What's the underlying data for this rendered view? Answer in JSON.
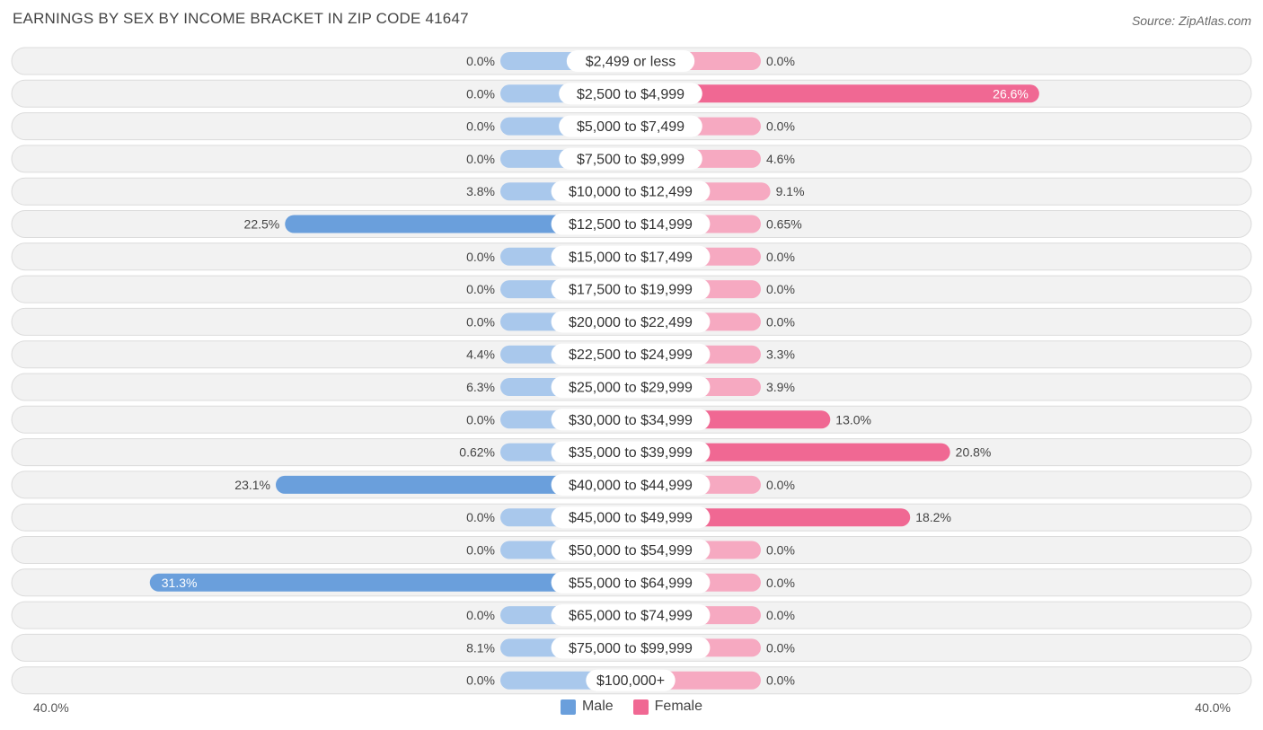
{
  "header": {
    "title": "EARNINGS BY SEX BY INCOME BRACKET IN ZIP CODE 41647",
    "source": "Source: ZipAtlas.com"
  },
  "colors": {
    "male_strong": "#6a9fdc",
    "male_light": "#a9c8ec",
    "female_strong": "#f06893",
    "female_light": "#f6a9c1",
    "row_bg": "#f2f2f2",
    "row_border": "#dcdcdc"
  },
  "chart_data": {
    "type": "bar",
    "orientation": "horizontal-diverging",
    "title": "EARNINGS BY SEX BY INCOME BRACKET IN ZIP CODE 41647",
    "xlim": [
      -40,
      40
    ],
    "axis_labels": {
      "left": "40.0%",
      "right": "40.0%"
    },
    "legend": [
      {
        "name": "Male",
        "color": "#6a9fdc"
      },
      {
        "name": "Female",
        "color": "#f06893"
      }
    ],
    "categories": [
      "$2,499 or less",
      "$2,500 to $4,999",
      "$5,000 to $7,499",
      "$7,500 to $9,999",
      "$10,000 to $12,499",
      "$12,500 to $14,999",
      "$15,000 to $17,499",
      "$17,500 to $19,999",
      "$20,000 to $22,499",
      "$22,500 to $24,999",
      "$25,000 to $29,999",
      "$30,000 to $34,999",
      "$35,000 to $39,999",
      "$40,000 to $44,999",
      "$45,000 to $49,999",
      "$50,000 to $54,999",
      "$55,000 to $64,999",
      "$65,000 to $74,999",
      "$75,000 to $99,999",
      "$100,000+"
    ],
    "series": [
      {
        "name": "Male",
        "values": [
          0.0,
          0.0,
          0.0,
          0.0,
          3.8,
          22.5,
          0.0,
          0.0,
          0.0,
          4.4,
          6.3,
          0.0,
          0.62,
          23.1,
          0.0,
          0.0,
          31.3,
          0.0,
          8.1,
          0.0
        ],
        "labels": [
          "0.0%",
          "0.0%",
          "0.0%",
          "0.0%",
          "3.8%",
          "22.5%",
          "0.0%",
          "0.0%",
          "0.0%",
          "4.4%",
          "6.3%",
          "0.0%",
          "0.62%",
          "23.1%",
          "0.0%",
          "0.0%",
          "31.3%",
          "0.0%",
          "8.1%",
          "0.0%"
        ]
      },
      {
        "name": "Female",
        "values": [
          0.0,
          26.6,
          0.0,
          4.6,
          9.1,
          0.65,
          0.0,
          0.0,
          0.0,
          3.3,
          3.9,
          13.0,
          20.8,
          0.0,
          18.2,
          0.0,
          0.0,
          0.0,
          0.0,
          0.0
        ],
        "labels": [
          "0.0%",
          "26.6%",
          "0.0%",
          "4.6%",
          "9.1%",
          "0.65%",
          "0.0%",
          "0.0%",
          "0.0%",
          "3.3%",
          "3.9%",
          "13.0%",
          "20.8%",
          "0.0%",
          "18.2%",
          "0.0%",
          "0.0%",
          "0.0%",
          "0.0%",
          "0.0%"
        ]
      }
    ]
  }
}
